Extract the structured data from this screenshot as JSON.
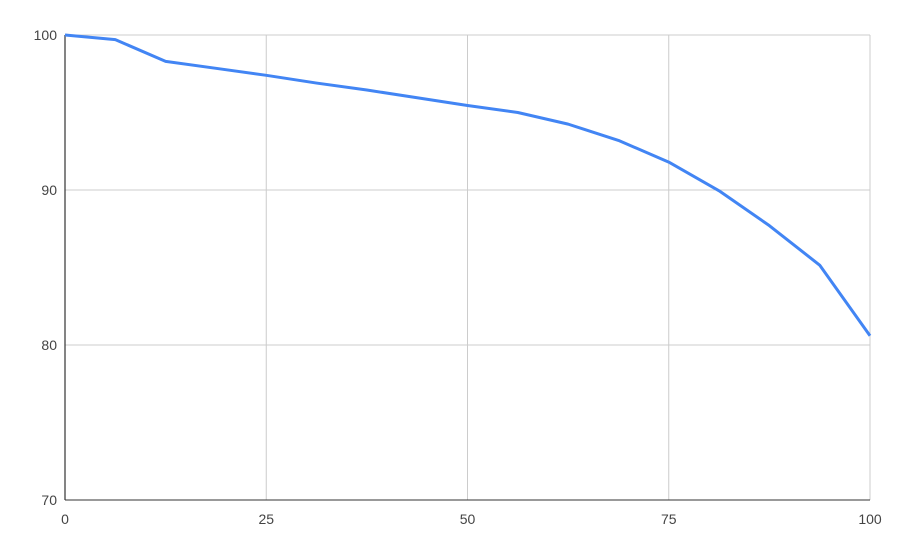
{
  "chart_data": {
    "type": "line",
    "title": "",
    "xlabel": "",
    "ylabel": "",
    "xlim": [
      0,
      100
    ],
    "ylim": [
      70,
      100
    ],
    "x_ticks": [
      "0",
      "25",
      "50",
      "75",
      "100"
    ],
    "y_ticks": [
      "70",
      "80",
      "90",
      "100"
    ],
    "grid": true,
    "legend": "none",
    "line_color": "#4285f4",
    "series": [
      {
        "x": [
          0,
          6.25,
          12.5,
          18.75,
          25,
          31.25,
          37.5,
          43.75,
          50,
          56.25,
          62.5,
          68.75,
          75,
          81.25,
          87.5,
          93.75,
          100
        ],
        "values": [
          100,
          99.7,
          98.3,
          97.85,
          97.4,
          96.9,
          96.45,
          95.95,
          95.45,
          95.0,
          94.25,
          93.2,
          91.8,
          89.95,
          87.7,
          85.15,
          80.6
        ]
      }
    ]
  }
}
